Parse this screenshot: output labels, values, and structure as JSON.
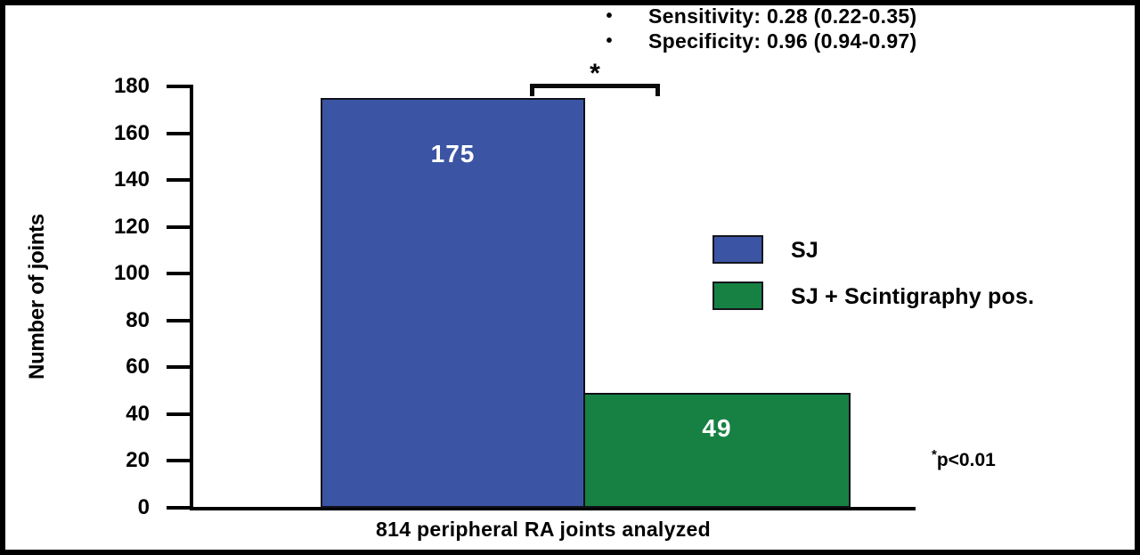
{
  "header": {
    "bullet_glyph": "•",
    "bullets": [
      "Sensitivity: 0.28 (0.22-0.35)",
      "Specificity: 0.96 (0.94-0.97)"
    ]
  },
  "chart_data": {
    "type": "bar",
    "title": "",
    "categories": [
      "SJ",
      "SJ + Scintigraphy pos."
    ],
    "values": [
      175,
      49
    ],
    "value_labels": [
      "175",
      "49"
    ],
    "bar_colors": [
      "#3B55A4",
      "#178143"
    ],
    "xlabel": "814 peripheral RA joints analyzed",
    "ylabel": "Number of joints",
    "ylim": [
      0,
      180
    ],
    "yticks": [
      0,
      20,
      40,
      60,
      80,
      100,
      120,
      140,
      160,
      180
    ],
    "grid": false,
    "legend_position": "right-middle",
    "annotations": [
      {
        "type": "significance-bracket",
        "label": "*",
        "between": [
          "SJ",
          "SJ + Scintigraphy pos."
        ]
      },
      {
        "type": "note",
        "star": "*",
        "text": "p<0.01"
      }
    ]
  },
  "legend": {
    "items": [
      {
        "label": "SJ",
        "color": "#3B55A4"
      },
      {
        "label": "SJ + Scintigraphy pos.",
        "color": "#178143"
      }
    ]
  },
  "colors": {
    "frame_border": "#000000",
    "axis": "#000000",
    "bar_blue": "#3B55A4",
    "bar_green": "#178143",
    "value_label_text": "#FFFFFF"
  }
}
